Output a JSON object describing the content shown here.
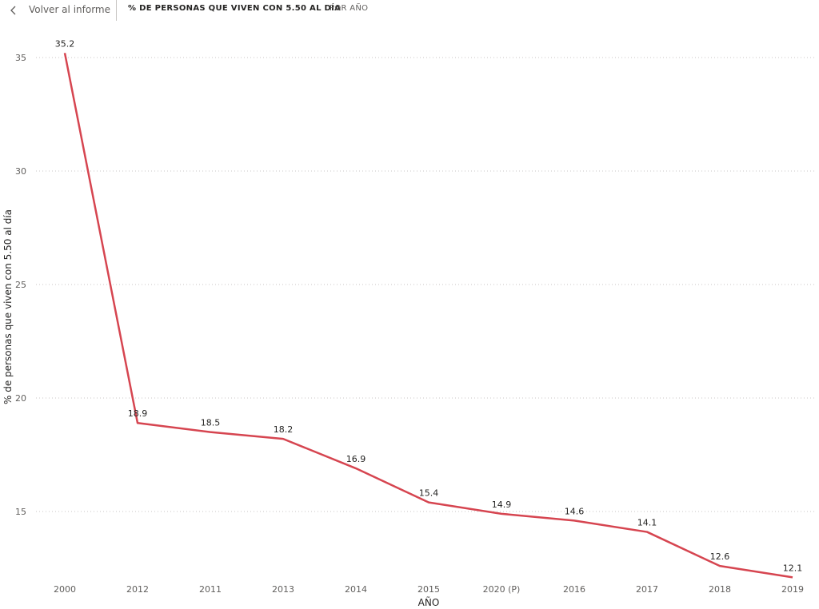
{
  "header": {
    "back_label": "Volver al informe",
    "back_icon": "chevron-left-icon",
    "title": "% DE PERSONAS QUE VIVEN CON 5.50 AL DÍA",
    "subtitle": "POR AÑO"
  },
  "chart_data": {
    "type": "line",
    "categories": [
      "2000",
      "2012",
      "2011",
      "2013",
      "2014",
      "2015",
      "2020 (P)",
      "2016",
      "2017",
      "2018",
      "2019"
    ],
    "series": [
      {
        "values": [
          35.2,
          18.9,
          18.5,
          18.2,
          16.9,
          15.4,
          14.9,
          14.6,
          14.1,
          12.6,
          12.1
        ]
      }
    ],
    "xlabel": "AÑO",
    "ylabel": "% de personas que viven con 5.50 al día",
    "yticks": [
      15,
      20,
      25,
      30,
      35
    ],
    "ylim": [
      12.1,
      35.2
    ],
    "grid": true,
    "line_color": "#d64550",
    "data_labels": true
  }
}
